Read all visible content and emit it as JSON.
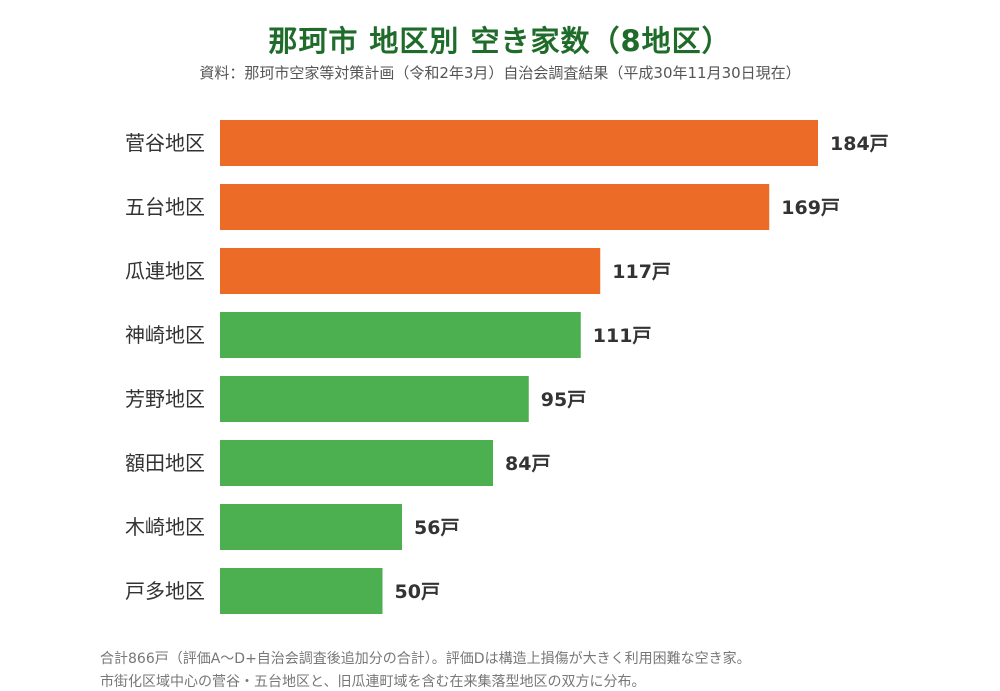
{
  "chart_data": {
    "type": "bar",
    "orientation": "horizontal",
    "title": "那珂市 地区別 空き家数（8地区）",
    "subtitle": "資料：那珂市空家等対策計画（令和2年3月）自治会調査結果（平成30年11月30日現在）",
    "categories": [
      "菅谷地区",
      "五台地区",
      "瓜連地区",
      "神崎地区",
      "芳野地区",
      "額田地区",
      "木崎地区",
      "戸多地区"
    ],
    "values": [
      184,
      169,
      117,
      111,
      95,
      84,
      56,
      50
    ],
    "value_labels": [
      "184戸",
      "169戸",
      "117戸",
      "111戸",
      "95戸",
      "84戸",
      "56戸",
      "50戸"
    ],
    "bar_colors": [
      "#ec6b26",
      "#ec6b26",
      "#ec6b26",
      "#4caf50",
      "#4caf50",
      "#4caf50",
      "#4caf50",
      "#4caf50"
    ],
    "xlim": [
      0,
      184
    ],
    "grid": false,
    "legend": "none"
  },
  "footnotes": [
    "合計866戸（評価A〜D+自治会調査後追加分の合計）。評価Dは構造上損傷が大きく利用困難な空き家。",
    "市街化区域中心の菅谷・五台地区と、旧瓜連町域を含む在来集落型地区の双方に分布。"
  ]
}
